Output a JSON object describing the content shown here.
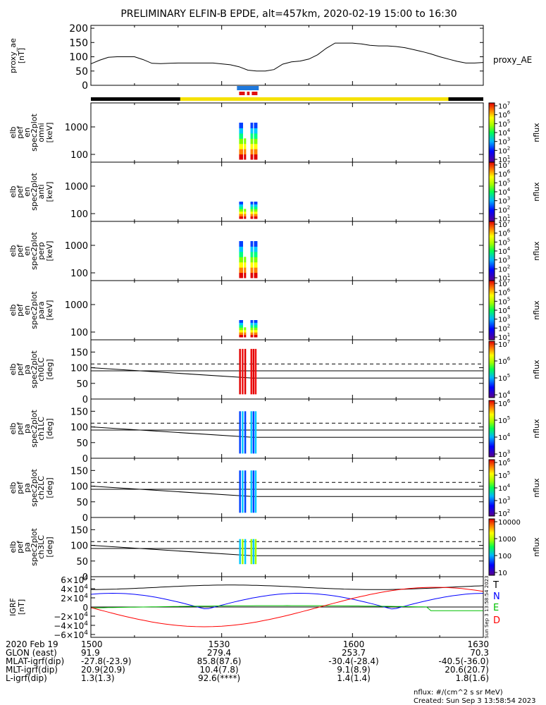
{
  "title": "PRELIMINARY ELFIN-B EPDE, alt=457km, 2020-02-19 15:00 to 16:30",
  "chart_data": {
    "type": "spectrogram-stack",
    "time_ticks_labels": [
      "1500",
      "1530",
      "1600",
      "1630"
    ],
    "proxy_ae": {
      "ylabel": [
        "proxy_ae",
        "[nT]"
      ],
      "legend": "proxy_AE",
      "yticks": [
        "200",
        "150",
        "100",
        "50",
        "0"
      ],
      "ylim": [
        0,
        210
      ],
      "x_min": [
        0,
        2,
        4,
        6,
        8,
        10,
        12,
        14,
        16,
        18,
        20,
        22,
        24,
        26,
        28,
        30,
        32,
        34,
        36,
        38,
        40,
        42,
        44,
        46,
        48,
        50,
        52,
        54,
        56,
        58,
        60,
        62,
        64,
        66,
        68,
        70,
        72,
        74,
        76,
        78,
        80,
        82,
        84,
        86,
        88,
        90
      ],
      "values": [
        75,
        88,
        98,
        100,
        100,
        100,
        90,
        77,
        76,
        77,
        78,
        78,
        78,
        78,
        78,
        75,
        72,
        65,
        53,
        50,
        50,
        55,
        74,
        82,
        85,
        92,
        107,
        130,
        148,
        148,
        148,
        145,
        140,
        138,
        138,
        136,
        132,
        125,
        118,
        110,
        100,
        92,
        84,
        78,
        78,
        80
      ]
    },
    "spectrograms": [
      {
        "ylabel": [
          "elb",
          "pef",
          "en",
          "spec2plot",
          "omni",
          "[keV]"
        ],
        "yticks": [
          "1000",
          "100"
        ],
        "cbar_ticks": [
          "10^7",
          "10^6",
          "10^5",
          "10^4",
          "10^3",
          "10^2",
          "10^1"
        ],
        "cbar_label": "nflux"
      },
      {
        "ylabel": [
          "elb",
          "pef",
          "en",
          "spec2plot",
          "anti",
          "[keV]"
        ],
        "yticks": [
          "1000",
          "100"
        ],
        "cbar_ticks": [
          "10^7",
          "10^6",
          "10^5",
          "10^4",
          "10^3",
          "10^2",
          "10^1"
        ],
        "cbar_label": "nflux"
      },
      {
        "ylabel": [
          "elb",
          "pef",
          "en",
          "spec2plot",
          "perp",
          "[keV]"
        ],
        "yticks": [
          "1000",
          "100"
        ],
        "cbar_ticks": [
          "10^7",
          "10^6",
          "10^5",
          "10^4",
          "10^3",
          "10^2",
          "10^1"
        ],
        "cbar_label": "nflux"
      },
      {
        "ylabel": [
          "elb",
          "pef",
          "en",
          "spec2plot",
          "para",
          "[keV]"
        ],
        "yticks": [
          "1000",
          "100"
        ],
        "cbar_ticks": [
          "10^7",
          "10^6",
          "10^5",
          "10^4",
          "10^3",
          "10^2",
          "10^1"
        ],
        "cbar_label": "nflux"
      }
    ],
    "pitch_angle": [
      {
        "ylabel": [
          "elb",
          "pef",
          "pa",
          "spec2plot",
          "ch0LC",
          "[deg]"
        ],
        "yticks": [
          "150",
          "100",
          "50",
          "0"
        ],
        "cbar_ticks": [
          "10^7",
          "10^6",
          "10^5",
          "10^4"
        ],
        "cbar_label": "nflux"
      },
      {
        "ylabel": [
          "elb",
          "pef",
          "pa",
          "spec2plot",
          "ch1LC",
          "[deg]"
        ],
        "yticks": [
          "150",
          "100",
          "50",
          "0"
        ],
        "cbar_ticks": [
          "10^6",
          "10^5",
          "10^4",
          "10^3"
        ],
        "cbar_label": "nflux"
      },
      {
        "ylabel": [
          "elb",
          "pef",
          "pa",
          "spec2plot",
          "ch2LC",
          "[deg]"
        ],
        "yticks": [
          "150",
          "100",
          "50",
          "0"
        ],
        "cbar_ticks": [
          "10^6",
          "10^5",
          "10^4",
          "10^3",
          "10^2"
        ],
        "cbar_label": "nflux"
      },
      {
        "ylabel": [
          "elb",
          "pef",
          "pa",
          "spec2plot",
          "ch3LC",
          "[deg]"
        ],
        "yticks": [
          "150",
          "100",
          "50",
          "0"
        ],
        "cbar_ticks": [
          "10000",
          "1000",
          "100",
          "10"
        ],
        "cbar_label": "nflux"
      }
    ],
    "igrf": {
      "ylabel": [
        "IGRF",
        "[nT]"
      ],
      "yticks": [
        "6×10^4",
        "4×10^4",
        "2×10^4",
        "0",
        "−2×10^4",
        "−4×10^4",
        "−6×10^4"
      ],
      "legend": [
        {
          "name": "T",
          "color": "#000000"
        },
        {
          "name": "N",
          "color": "#0000ff"
        },
        {
          "name": "E",
          "color": "#00c000"
        },
        {
          "name": "D",
          "color": "#ff0000"
        }
      ],
      "side_text": "Sun Sep  3 13:58:54 2023"
    }
  },
  "ephemeris": {
    "rows": [
      {
        "label": "2020 Feb 19",
        "values": [
          "1500",
          "1530",
          "1600",
          "1630"
        ]
      },
      {
        "label": "GLON (east)",
        "values": [
          "91.9",
          "279.4",
          "253.7",
          "70.3"
        ]
      },
      {
        "label": "MLAT-igrf(dip)",
        "values": [
          "-27.8(-23.9)",
          "85.8(87.6)",
          "-30.4(-28.4)",
          "-40.5(-36.0)"
        ]
      },
      {
        "label": "MLT-igrf(dip)",
        "values": [
          "20.9(20.9)",
          "10.4(7.8)",
          "9.1(8.9)",
          "20.6(20.7)"
        ]
      },
      {
        "label": "L-igrf(dip)",
        "values": [
          "1.3(1.3)",
          "92.6(****)",
          "1.4(1.4)",
          "1.8(1.6)"
        ]
      }
    ]
  },
  "footer": {
    "units": "nflux: #/(cm^2 s sr MeV)",
    "created": "Created: Sun Sep  3 13:58:54 2023"
  },
  "colors": {
    "black": "#000000",
    "yellow": "#f5e100",
    "blue_bar": "#1e78dc",
    "red_bar": "#e01010"
  }
}
